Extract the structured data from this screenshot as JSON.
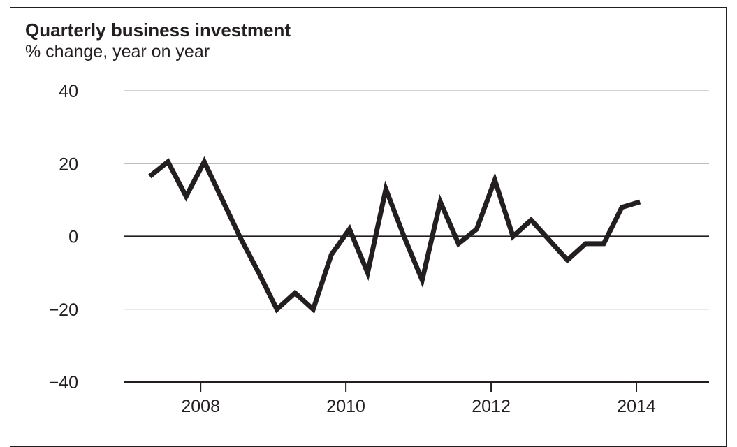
{
  "chart_data": {
    "type": "line",
    "title": "Quarterly business investment",
    "subtitle": "% change, year on year",
    "xlabel": "",
    "ylabel": "",
    "xlim": [
      2007,
      2015
    ],
    "ylim": [
      -40,
      40
    ],
    "yticks": [
      40,
      20,
      0,
      -20,
      -40
    ],
    "ytick_labels": [
      "40",
      "20",
      "0",
      "−20",
      "−40"
    ],
    "xticks": [
      2008,
      2010,
      2012,
      2014
    ],
    "xtick_labels": [
      "2008",
      "2010",
      "2012",
      "2014"
    ],
    "grid": "horizontal",
    "series": [
      {
        "color": "#231f20",
        "x": [
          2007.3,
          2007.55,
          2007.8,
          2008.05,
          2008.3,
          2008.55,
          2008.8,
          2009.05,
          2009.3,
          2009.55,
          2009.8,
          2010.05,
          2010.3,
          2010.55,
          2010.8,
          2011.05,
          2011.3,
          2011.55,
          2011.8,
          2012.05,
          2012.3,
          2012.55,
          2012.8,
          2013.05,
          2013.3,
          2013.55,
          2013.8,
          2014.05
        ],
        "values": [
          16.5,
          20.5,
          11,
          20.5,
          10,
          -0.5,
          -10,
          -20,
          -15.5,
          -20,
          -5,
          2,
          -10,
          13,
          0,
          -12,
          9.5,
          -2,
          2,
          15.5,
          0,
          4.5,
          -1,
          -6.5,
          -2,
          -2,
          8,
          9.5
        ]
      }
    ]
  }
}
